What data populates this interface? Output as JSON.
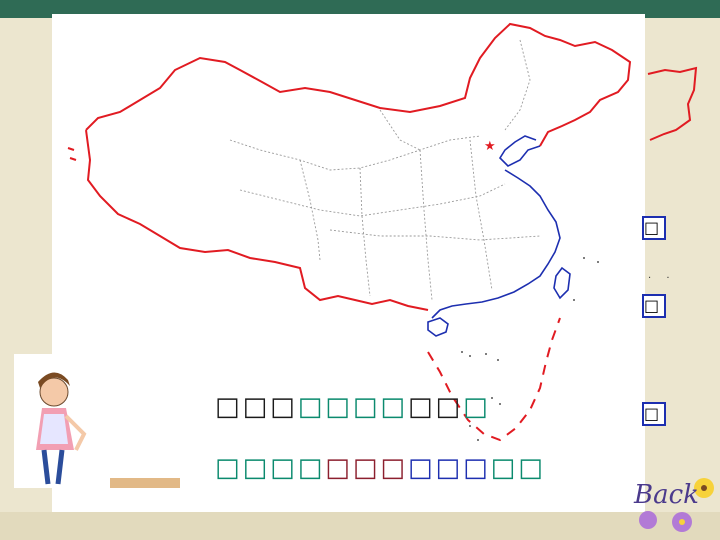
{
  "slide": {
    "question_line_1": [
      {
        "text": "□□□",
        "color": "black"
      },
      {
        "text": "□□□□",
        "color": "teal"
      },
      {
        "text": "□□",
        "color": "black"
      },
      {
        "text": "□",
        "color": "teal"
      }
    ],
    "question_line_2": [
      {
        "text": "□□□□",
        "color": "teal"
      },
      {
        "text": "□□□",
        "color": "red"
      },
      {
        "text": "□□□",
        "color": "blue"
      },
      {
        "text": "□□",
        "color": "teal"
      }
    ],
    "side_labels": [
      "□",
      "□",
      "□"
    ],
    "dots": ". ."
  },
  "map": {
    "border_color": "#e11b22",
    "coast_color": "#1d2fb0",
    "province_color": "#9a9a9a",
    "capital_marker": "red-star"
  },
  "navigation": {
    "back_label": "Back"
  },
  "colors": {
    "frame_green": "#2f6b55",
    "frame_cream": "#ece6cf",
    "teal": "#0b8a6e",
    "red": "#8c1f2e",
    "blue": "#1d2fb0"
  }
}
